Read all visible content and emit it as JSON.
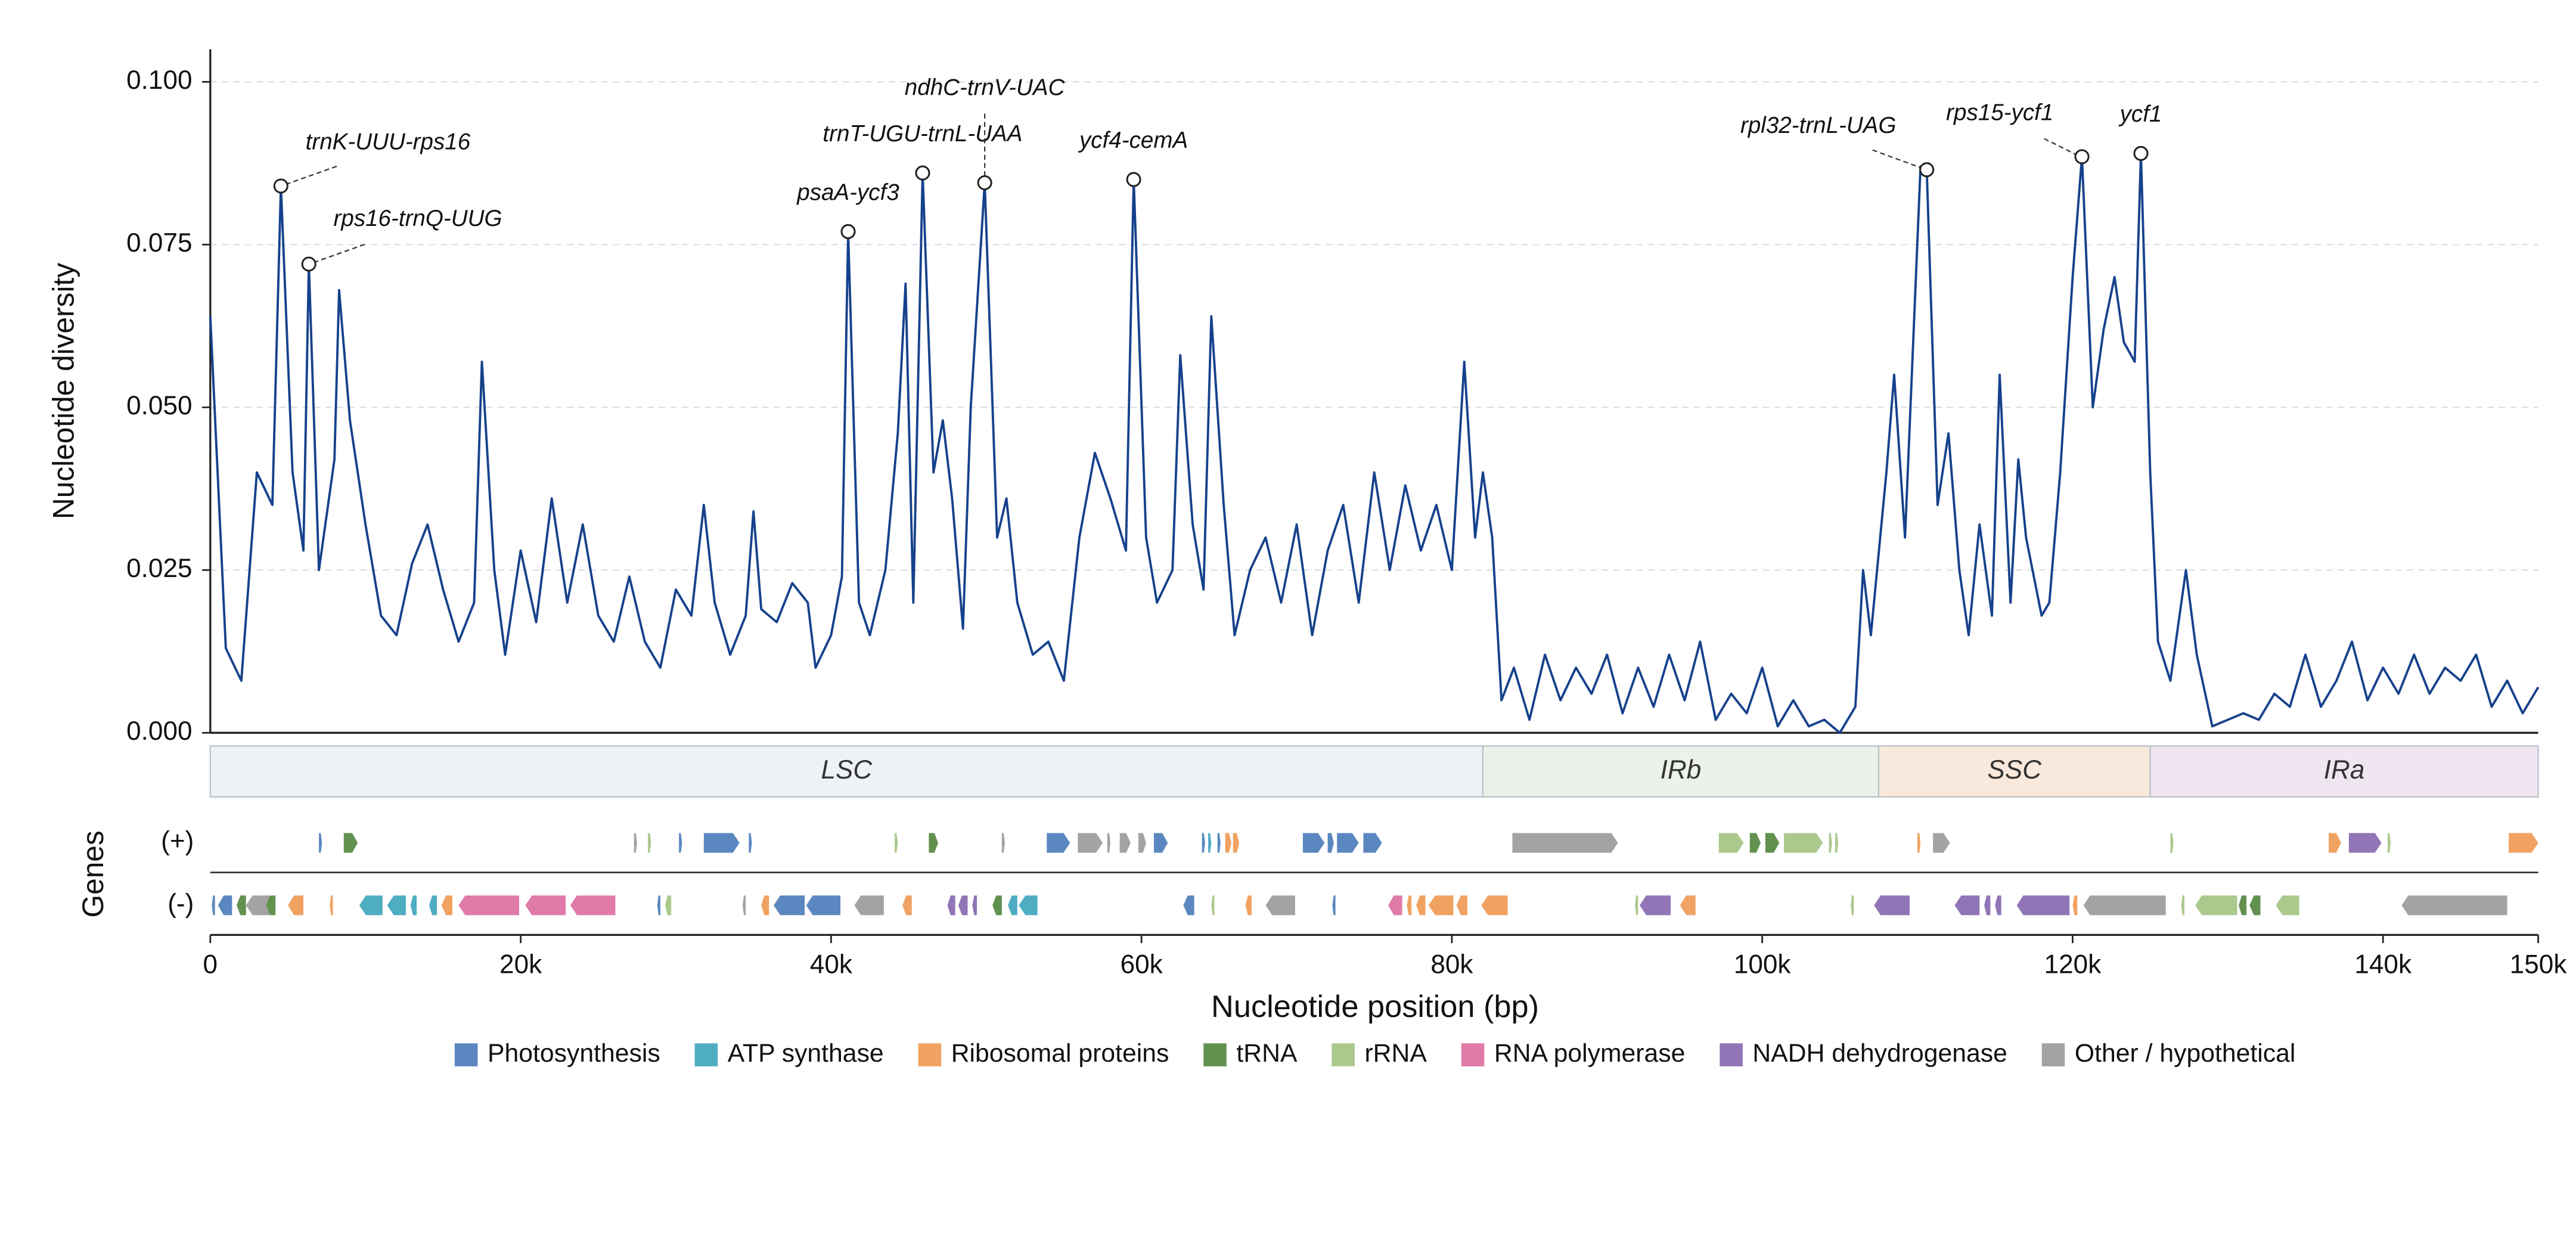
{
  "chart_data": {
    "type": "line",
    "y_label": "Nucleotide diversity",
    "x_label": "Nucleotide position (bp)",
    "genes_label": "Genes",
    "line_color": "#16428c",
    "grid": true,
    "xlim": [
      0,
      150000
    ],
    "xticks": [
      0,
      {
        "value": 20000,
        "label": "20k"
      },
      {
        "value": 40000,
        "label": "40k"
      },
      {
        "value": 60000,
        "label": "60k"
      },
      {
        "value": 80000,
        "label": "80k"
      },
      {
        "value": 100000,
        "label": "100k"
      },
      {
        "value": 120000,
        "label": "120k"
      },
      {
        "value": 140000,
        "label": "140k"
      },
      {
        "value": 150000,
        "label": "150k"
      }
    ],
    "ylim": [
      0,
      0.105
    ],
    "yticks": [
      {
        "value": 0,
        "label": "0.000"
      },
      0.025,
      {
        "value": 0.05,
        "label": "0.050"
      },
      0.075,
      {
        "value": 0.1,
        "label": "0.100"
      }
    ],
    "x": [
      0,
      1000,
      2000,
      3000,
      4000,
      4550,
      5300,
      6000,
      6350,
      7000,
      8000,
      8300,
      9000,
      10000,
      11000,
      12000,
      13000,
      14000,
      15000,
      16000,
      17000,
      17500,
      18300,
      19000,
      20000,
      21000,
      22000,
      23000,
      24000,
      25000,
      26000,
      27000,
      28000,
      29000,
      30000,
      31000,
      31800,
      32500,
      33500,
      34500,
      35000,
      35500,
      36500,
      37500,
      38500,
      39000,
      40000,
      40700,
      41100,
      41800,
      42500,
      43500,
      44300,
      44800,
      45300,
      45900,
      46600,
      47200,
      47800,
      48500,
      49000,
      49900,
      50700,
      51300,
      52000,
      53000,
      54000,
      55000,
      56000,
      57000,
      58000,
      59000,
      59500,
      60300,
      61000,
      62000,
      62500,
      63300,
      64000,
      64500,
      65300,
      66000,
      67000,
      68000,
      69000,
      70000,
      71000,
      72000,
      73000,
      74000,
      75000,
      76000,
      77000,
      78000,
      79000,
      80000,
      80800,
      81500,
      82000,
      82600,
      83200,
      84000,
      85000,
      86000,
      87000,
      88000,
      89000,
      90000,
      91000,
      92000,
      93000,
      94000,
      95000,
      96000,
      97000,
      98000,
      99000,
      100000,
      101000,
      102000,
      103000,
      104000,
      105000,
      106000,
      106500,
      107000,
      108000,
      108500,
      109200,
      110200,
      110600,
      111300,
      112000,
      112700,
      113300,
      114000,
      114800,
      115300,
      116000,
      116500,
      117000,
      118000,
      118500,
      119200,
      120000,
      120600,
      121300,
      122000,
      122700,
      123300,
      124000,
      124400,
      125000,
      125500,
      126300,
      127300,
      128000,
      129000,
      130000,
      131000,
      132000,
      133000,
      134000,
      135000,
      136000,
      137000,
      138000,
      139000,
      140000,
      141000,
      142000,
      143000,
      144000,
      145000,
      146000,
      147000,
      148000,
      149000,
      150000
    ],
    "values": [
      0.064,
      0.013,
      0.008,
      0.04,
      0.035,
      0.084,
      0.04,
      0.028,
      0.072,
      0.025,
      0.042,
      0.068,
      0.048,
      0.032,
      0.018,
      0.015,
      0.026,
      0.032,
      0.022,
      0.014,
      0.02,
      0.057,
      0.025,
      0.012,
      0.028,
      0.017,
      0.036,
      0.02,
      0.032,
      0.018,
      0.014,
      0.024,
      0.014,
      0.01,
      0.022,
      0.018,
      0.035,
      0.02,
      0.012,
      0.018,
      0.034,
      0.019,
      0.017,
      0.023,
      0.02,
      0.01,
      0.015,
      0.024,
      0.077,
      0.02,
      0.015,
      0.025,
      0.046,
      0.069,
      0.02,
      0.086,
      0.04,
      0.048,
      0.036,
      0.016,
      0.05,
      0.0845,
      0.03,
      0.036,
      0.02,
      0.012,
      0.014,
      0.008,
      0.03,
      0.043,
      0.036,
      0.028,
      0.085,
      0.03,
      0.02,
      0.025,
      0.058,
      0.032,
      0.022,
      0.064,
      0.035,
      0.015,
      0.025,
      0.03,
      0.02,
      0.032,
      0.015,
      0.028,
      0.035,
      0.02,
      0.04,
      0.025,
      0.038,
      0.028,
      0.035,
      0.025,
      0.057,
      0.03,
      0.04,
      0.03,
      0.005,
      0.01,
      0.002,
      0.012,
      0.005,
      0.01,
      0.006,
      0.012,
      0.003,
      0.01,
      0.004,
      0.012,
      0.005,
      0.014,
      0.002,
      0.006,
      0.003,
      0.01,
      0.001,
      0.005,
      0.001,
      0.002,
      0.0,
      0.004,
      0.025,
      0.015,
      0.04,
      0.055,
      0.03,
      0.087,
      0.0865,
      0.035,
      0.046,
      0.025,
      0.015,
      0.032,
      0.018,
      0.055,
      0.02,
      0.042,
      0.03,
      0.018,
      0.02,
      0.04,
      0.07,
      0.0885,
      0.05,
      0.062,
      0.07,
      0.06,
      0.057,
      0.089,
      0.04,
      0.014,
      0.008,
      0.025,
      0.012,
      0.001,
      0.002,
      0.003,
      0.002,
      0.006,
      0.004,
      0.012,
      0.004,
      0.008,
      0.014,
      0.005,
      0.01,
      0.006,
      0.012,
      0.006,
      0.01,
      0.008,
      0.012,
      0.004,
      0.008,
      0.003,
      0.007
    ],
    "annotations": [
      {
        "label": "trnK-UUU-rps16",
        "x": 4550,
        "y": 0.084
      },
      {
        "label": "rps16-trnQ-UUG",
        "x": 6350,
        "y": 0.072
      },
      {
        "label": "psaA-ycf3",
        "x": 41100,
        "y": 0.077
      },
      {
        "label": "trnT-UGU-trnL-UAA",
        "x": 45900,
        "y": 0.086
      },
      {
        "label": "ndhC-trnV-UAC",
        "x": 49900,
        "y": 0.0845
      },
      {
        "label": "ycf4-cemA",
        "x": 59500,
        "y": 0.085
      },
      {
        "label": "rpl32-trnL-UAG",
        "x": 110600,
        "y": 0.0865
      },
      {
        "label": "rps15-ycf1",
        "x": 120600,
        "y": 0.0885
      },
      {
        "label": "ycf1",
        "x": 124400,
        "y": 0.089
      }
    ],
    "regions": [
      {
        "label": "LSC",
        "start": 0,
        "end": 82000,
        "color": "#eef2f6"
      },
      {
        "label": "IRb",
        "start": 82000,
        "end": 107500,
        "color": "#ecf2ea"
      },
      {
        "label": "SSC",
        "start": 107500,
        "end": 125000,
        "color": "#f9e9dc"
      },
      {
        "label": "IRa",
        "start": 125000,
        "end": 150000,
        "color": "#f0e6f1"
      }
    ],
    "gene_groups": [
      {
        "name": "Photosynthesis",
        "color": "#5b87c0"
      },
      {
        "name": "ATP synthase",
        "color": "#4fadc2"
      },
      {
        "name": "Ribosomal proteins",
        "color": "#f0a262"
      },
      {
        "name": "tRNA",
        "color": "#62914f"
      },
      {
        "name": "rRNA",
        "color": "#abc98c"
      },
      {
        "name": "RNA polymerase",
        "color": "#e07aa8"
      },
      {
        "name": "NADH dehydrogenase",
        "color": "#9175b6"
      },
      {
        "name": "Other / hypothetical",
        "color": "#a3a3a3"
      }
    ],
    "tracks": [
      {
        "label": "(+)",
        "genes": [
          [
            7000,
            7200,
            0
          ],
          [
            8600,
            9500,
            3
          ],
          [
            27300,
            27500,
            7
          ],
          [
            28200,
            28400,
            4
          ],
          [
            30200,
            30400,
            0
          ],
          [
            31800,
            34100,
            0
          ],
          [
            34700,
            34900,
            0
          ],
          [
            44100,
            44300,
            4
          ],
          [
            46300,
            46900,
            3
          ],
          [
            51000,
            51200,
            7
          ],
          [
            53900,
            55400,
            0
          ],
          [
            55900,
            57500,
            7
          ],
          [
            57800,
            58000,
            7
          ],
          [
            58600,
            59300,
            7
          ],
          [
            59800,
            60300,
            7
          ],
          [
            60800,
            61700,
            0
          ],
          [
            63900,
            64100,
            0
          ],
          [
            64300,
            64500,
            1
          ],
          [
            64900,
            65100,
            0
          ],
          [
            65400,
            65800,
            2
          ],
          [
            65900,
            66300,
            2
          ],
          [
            70400,
            71800,
            0
          ],
          [
            72000,
            72400,
            0
          ],
          [
            72600,
            74000,
            0
          ],
          [
            74300,
            75500,
            0
          ],
          [
            83900,
            90700,
            7
          ],
          [
            97200,
            98800,
            4
          ],
          [
            99200,
            99900,
            3
          ],
          [
            100200,
            101100,
            3
          ],
          [
            101400,
            103900,
            4
          ],
          [
            104300,
            104500,
            4
          ],
          [
            104700,
            104900,
            4
          ],
          [
            110000,
            110200,
            2
          ],
          [
            111000,
            112100,
            7
          ],
          [
            126300,
            126500,
            4
          ],
          [
            136500,
            137300,
            2
          ],
          [
            137800,
            139900,
            6
          ],
          [
            140300,
            140500,
            4
          ],
          [
            148100,
            150000,
            2
          ]
        ]
      },
      {
        "label": "(-)",
        "genes": [
          [
            100,
            300,
            0
          ],
          [
            500,
            1400,
            0
          ],
          [
            1700,
            2300,
            3
          ],
          [
            2300,
            3800,
            7
          ],
          [
            3600,
            4200,
            3
          ],
          [
            5000,
            6000,
            2
          ],
          [
            7700,
            7900,
            2
          ],
          [
            9600,
            11100,
            1
          ],
          [
            11400,
            12600,
            1
          ],
          [
            12900,
            13300,
            1
          ],
          [
            14100,
            14600,
            1
          ],
          [
            14900,
            15600,
            2
          ],
          [
            16000,
            19900,
            5
          ],
          [
            20300,
            22900,
            5
          ],
          [
            23200,
            26100,
            5
          ],
          [
            28800,
            29000,
            0
          ],
          [
            29300,
            29700,
            4
          ],
          [
            34300,
            34500,
            7
          ],
          [
            35500,
            36000,
            2
          ],
          [
            36300,
            38300,
            0
          ],
          [
            38400,
            40600,
            0
          ],
          [
            41500,
            43400,
            7
          ],
          [
            44600,
            45200,
            2
          ],
          [
            47500,
            48000,
            6
          ],
          [
            48200,
            48800,
            6
          ],
          [
            49100,
            49400,
            6
          ],
          [
            50400,
            51000,
            3
          ],
          [
            51400,
            52000,
            1
          ],
          [
            52100,
            53300,
            1
          ],
          [
            62700,
            63400,
            0
          ],
          [
            64500,
            64700,
            4
          ],
          [
            66700,
            67100,
            2
          ],
          [
            68000,
            69900,
            7
          ],
          [
            72300,
            72500,
            0
          ],
          [
            75900,
            76800,
            5
          ],
          [
            77100,
            77400,
            2
          ],
          [
            77700,
            78300,
            2
          ],
          [
            78500,
            80100,
            2
          ],
          [
            80300,
            81000,
            2
          ],
          [
            81900,
            83600,
            2
          ],
          [
            91800,
            92000,
            4
          ],
          [
            92100,
            94100,
            6
          ],
          [
            94700,
            95700,
            2
          ],
          [
            105700,
            105900,
            4
          ],
          [
            107200,
            109500,
            6
          ],
          [
            112400,
            114000,
            6
          ],
          [
            114300,
            114700,
            6
          ],
          [
            115000,
            115400,
            6
          ],
          [
            116400,
            119800,
            6
          ],
          [
            120000,
            120300,
            2
          ],
          [
            120700,
            126000,
            7
          ],
          [
            127000,
            127200,
            4
          ],
          [
            127900,
            130600,
            4
          ],
          [
            130700,
            131200,
            3
          ],
          [
            131400,
            132100,
            3
          ],
          [
            133100,
            134600,
            4
          ],
          [
            141200,
            148000,
            7
          ]
        ]
      }
    ]
  }
}
